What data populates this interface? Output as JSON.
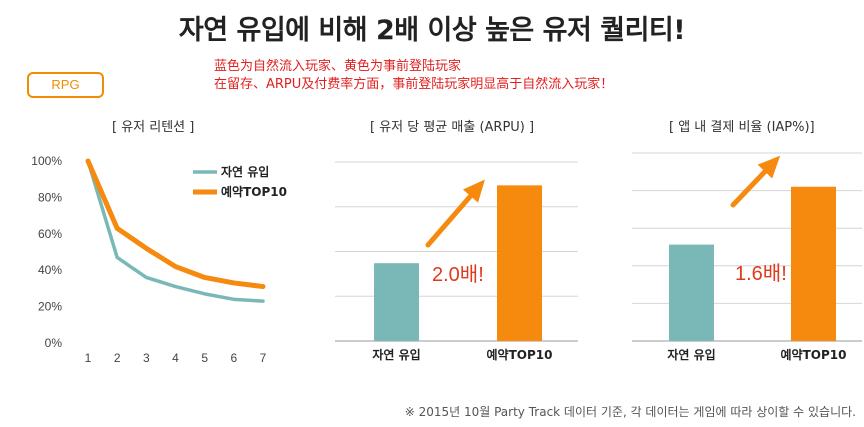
{
  "header": {
    "title": "자연 유입에 비해 2배 이상 높은 유저 퀄리티!",
    "note_line1": "蓝色为自然流入玩家、黄色为事前登陆玩家",
    "note_line2": "在留存、ARPU及付费率方面，事前登陆玩家明显高于自然流入玩家！",
    "genre_badge": "RPG"
  },
  "colors": {
    "organic": "#7ab8b8",
    "preregistration": "#f58a0f",
    "ratio_text": "#e03a1e"
  },
  "chart_data": [
    {
      "type": "line",
      "title": "[ 유저 리텐션 ]",
      "x": [
        1,
        2,
        3,
        4,
        5,
        6,
        7
      ],
      "ylim": [
        0,
        100
      ],
      "yticks": [
        "0%",
        "20%",
        "40%",
        "60%",
        "80%",
        "100%"
      ],
      "ytick_values": [
        0,
        20,
        40,
        60,
        80,
        100
      ],
      "series": [
        {
          "name": "자연 유입",
          "color": "#7ab8b8",
          "values": [
            100,
            47,
            36,
            31,
            27,
            24,
            23
          ]
        },
        {
          "name": "예약TOP10",
          "color": "#f58a0f",
          "values": [
            100,
            63,
            52,
            42,
            36,
            33,
            31
          ]
        }
      ],
      "legend": "top-right",
      "grid": false
    },
    {
      "type": "bar",
      "title": "[ 유저 당 평균 매출 (ARPU) ]",
      "categories": [
        "자연 유입",
        "예약TOP10"
      ],
      "values": [
        1.0,
        2.0
      ],
      "colors": [
        "#7ab8b8",
        "#f58a0f"
      ],
      "ylim": [
        0,
        2.3
      ],
      "annotation": "2.0배!",
      "grid": true
    },
    {
      "type": "bar",
      "title": "[ 앱 내 결제 비율 (IAP%)]",
      "categories": [
        "자연 유입",
        "예약TOP10"
      ],
      "values": [
        1.0,
        1.6
      ],
      "colors": [
        "#7ab8b8",
        "#f58a0f"
      ],
      "ylim": [
        0,
        1.95
      ],
      "annotation": "1.6배!",
      "grid": true
    }
  ],
  "footnote": "※ 2015년 10월 Party Track 데이터 기준, 각 데이터는 게임에 따라 상이할 수 있습니다."
}
